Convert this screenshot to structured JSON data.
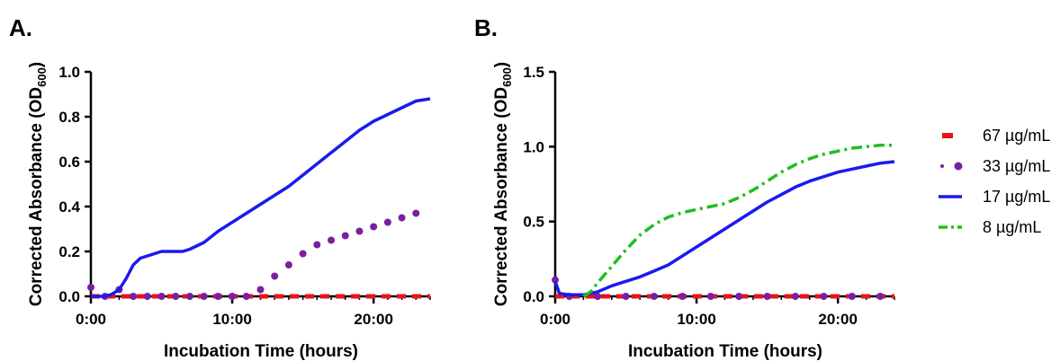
{
  "chart_data": [
    {
      "type": "line",
      "panel_label": "A.",
      "xlabel": "Incubation Time (hours)",
      "ylabel_main": "Corrected Absorbance (OD",
      "ylabel_sub": "600",
      "ylabel_end": ")",
      "xlim": [
        0,
        24
      ],
      "ylim": [
        0,
        1.0
      ],
      "x_ticks": [
        0,
        10,
        20
      ],
      "x_tick_labels": [
        "0:00",
        "10:00",
        "20:00"
      ],
      "y_ticks": [
        0,
        0.2,
        0.4,
        0.6,
        0.8,
        1.0
      ],
      "y_tick_labels": [
        "0.0",
        "0.2",
        "0.4",
        "0.6",
        "0.8",
        "1.0"
      ],
      "grid": false,
      "series": [
        {
          "name": "67 µg/mL",
          "color": "#e8141b",
          "style": "dash",
          "x": [
            0,
            24
          ],
          "y": [
            0.0,
            0.0
          ]
        },
        {
          "name": "33 µg/mL",
          "color": "#7b1fa2",
          "style": "dots",
          "x": [
            0,
            1,
            2,
            3,
            4,
            5,
            6,
            7,
            8,
            9,
            10,
            11,
            12,
            13,
            14,
            15,
            16,
            17,
            18,
            19,
            20,
            21,
            22,
            23
          ],
          "y": [
            0.04,
            0.0,
            0.03,
            0.0,
            0.0,
            0.0,
            0.0,
            0.0,
            0.0,
            0.0,
            0.0,
            0.0,
            0.03,
            0.09,
            0.14,
            0.19,
            0.23,
            0.25,
            0.27,
            0.29,
            0.31,
            0.33,
            0.35,
            0.37
          ]
        },
        {
          "name": "17 µg/mL",
          "color": "#1a1aee",
          "style": "solid",
          "x": [
            0,
            1,
            1.5,
            2,
            2.5,
            3,
            3.5,
            4,
            5,
            6,
            6.5,
            7,
            8,
            9,
            10,
            11,
            12,
            13,
            14,
            15,
            16,
            17,
            18,
            19,
            20,
            21,
            22,
            23,
            24
          ],
          "y": [
            0.0,
            0.0,
            0.01,
            0.03,
            0.08,
            0.14,
            0.17,
            0.18,
            0.2,
            0.2,
            0.2,
            0.21,
            0.24,
            0.29,
            0.33,
            0.37,
            0.41,
            0.45,
            0.49,
            0.54,
            0.59,
            0.64,
            0.69,
            0.74,
            0.78,
            0.81,
            0.84,
            0.87,
            0.88
          ]
        }
      ]
    },
    {
      "type": "line",
      "panel_label": "B.",
      "xlabel": "Incubation Time (hours)",
      "ylabel_main": "Corrected Absorbance (OD",
      "ylabel_sub": "600",
      "ylabel_end": ")",
      "xlim": [
        0,
        24
      ],
      "ylim": [
        0,
        1.5
      ],
      "x_ticks": [
        0,
        10,
        20
      ],
      "x_tick_labels": [
        "0:00",
        "10:00",
        "20:00"
      ],
      "y_ticks": [
        0,
        0.5,
        1.0,
        1.5
      ],
      "y_tick_labels": [
        "0.0",
        "0.5",
        "1.0",
        "1.5"
      ],
      "grid": false,
      "series": [
        {
          "name": "67 µg/mL",
          "color": "#e8141b",
          "style": "dash",
          "x": [
            0,
            24
          ],
          "y": [
            0.0,
            0.0
          ]
        },
        {
          "name": "33 µg/mL",
          "color": "#7b1fa2",
          "style": "dots",
          "x": [
            0,
            1,
            3,
            5,
            7,
            9,
            11,
            13,
            15,
            17,
            19,
            21,
            23
          ],
          "y": [
            0.11,
            0.0,
            0.0,
            0.0,
            0.0,
            0.0,
            0.0,
            0.0,
            0.0,
            0.0,
            0.0,
            0.0,
            0.0
          ]
        },
        {
          "name": "17 µg/mL",
          "color": "#1a1aee",
          "style": "solid",
          "x": [
            0,
            0.3,
            1,
            2,
            3,
            4,
            5,
            6,
            7,
            8,
            9,
            10,
            11,
            12,
            13,
            14,
            15,
            16,
            17,
            18,
            19,
            20,
            21,
            22,
            23,
            24
          ],
          "y": [
            0.1,
            0.02,
            0.01,
            0.01,
            0.03,
            0.07,
            0.1,
            0.13,
            0.17,
            0.21,
            0.27,
            0.33,
            0.39,
            0.45,
            0.51,
            0.57,
            0.63,
            0.68,
            0.73,
            0.77,
            0.8,
            0.83,
            0.85,
            0.87,
            0.89,
            0.9
          ]
        },
        {
          "name": "8 µg/mL",
          "color": "#1fbf1f",
          "style": "dashdot",
          "x": [
            2,
            2.5,
            3,
            4,
            5,
            6,
            7,
            8,
            9,
            10,
            11,
            12,
            13,
            14,
            15,
            16,
            17,
            18,
            19,
            20,
            21,
            22,
            23,
            24
          ],
          "y": [
            0.0,
            0.03,
            0.09,
            0.2,
            0.31,
            0.41,
            0.48,
            0.53,
            0.56,
            0.58,
            0.6,
            0.62,
            0.66,
            0.71,
            0.77,
            0.83,
            0.88,
            0.92,
            0.95,
            0.97,
            0.99,
            1.0,
            1.01,
            1.01
          ]
        }
      ]
    }
  ],
  "legend": {
    "position": "right",
    "items": [
      {
        "label": "67 µg/mL",
        "color": "#e8141b",
        "style": "dash"
      },
      {
        "label": "33 µg/mL",
        "color": "#7b1fa2",
        "style": "dots"
      },
      {
        "label": "17 µg/mL",
        "color": "#1a1aee",
        "style": "solid"
      },
      {
        "label": "8 µg/mL",
        "color": "#1fbf1f",
        "style": "dashdot"
      }
    ]
  }
}
